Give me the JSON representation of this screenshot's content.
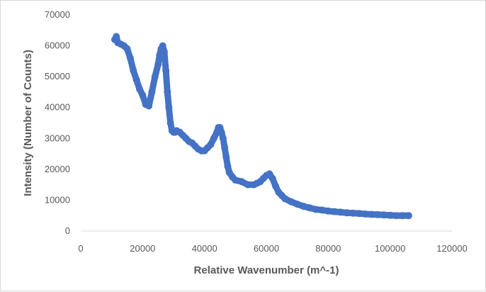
{
  "chart_data": {
    "type": "scatter",
    "title": "",
    "xlabel": "Relative Wavenumber (m^-1)",
    "ylabel": "Intensity (Number of Counts)",
    "xlim": [
      0,
      120000
    ],
    "ylim": [
      0,
      70000
    ],
    "x_ticks": [
      "0",
      "20000",
      "40000",
      "60000",
      "80000",
      "100000",
      "120000"
    ],
    "y_ticks": [
      "0",
      "10000",
      "20000",
      "30000",
      "40000",
      "50000",
      "60000",
      "70000"
    ],
    "grid": false,
    "legend": "none",
    "series_color": "#4472c4",
    "x": [
      11000,
      11500,
      12000,
      13000,
      14000,
      15000,
      16000,
      17000,
      18000,
      19000,
      20000,
      21000,
      22000,
      23000,
      24000,
      25000,
      25500,
      26000,
      26500,
      27000,
      27500,
      28000,
      28500,
      29000,
      29500,
      30000,
      30500,
      31000,
      32000,
      33000,
      34000,
      35000,
      36000,
      37000,
      38000,
      39000,
      40000,
      41000,
      42000,
      43000,
      44000,
      44500,
      45000,
      45500,
      46000,
      46500,
      47000,
      47500,
      48000,
      49000,
      50000,
      52000,
      54000,
      56000,
      57000,
      58000,
      59000,
      60000,
      61000,
      62000,
      63000,
      64000,
      65000,
      66000,
      68000,
      70000,
      72000,
      74000,
      76000,
      78000,
      80000,
      82000,
      84000,
      86000,
      88000,
      90000,
      92000,
      94000,
      96000,
      98000,
      100000,
      102000,
      104000,
      106000
    ],
    "y": [
      62000,
      63000,
      61000,
      60500,
      60000,
      59000,
      56000,
      52000,
      49000,
      46000,
      44000,
      41000,
      40500,
      45000,
      50000,
      54000,
      57000,
      59000,
      60000,
      58000,
      52000,
      45000,
      40000,
      35000,
      32500,
      32000,
      32000,
      32500,
      32000,
      31000,
      30000,
      29000,
      28500,
      27500,
      26500,
      26000,
      26000,
      27000,
      28000,
      30000,
      32000,
      33500,
      33500,
      32000,
      30000,
      27000,
      24000,
      21000,
      19000,
      17500,
      16500,
      16000,
      15000,
      15000,
      15500,
      16000,
      17000,
      18000,
      18500,
      17000,
      14500,
      12500,
      11500,
      10500,
      9500,
      8700,
      8000,
      7500,
      7000,
      6800,
      6500,
      6300,
      6100,
      5900,
      5800,
      5700,
      5500,
      5400,
      5300,
      5200,
      5100,
      5000,
      5000,
      5000
    ]
  }
}
